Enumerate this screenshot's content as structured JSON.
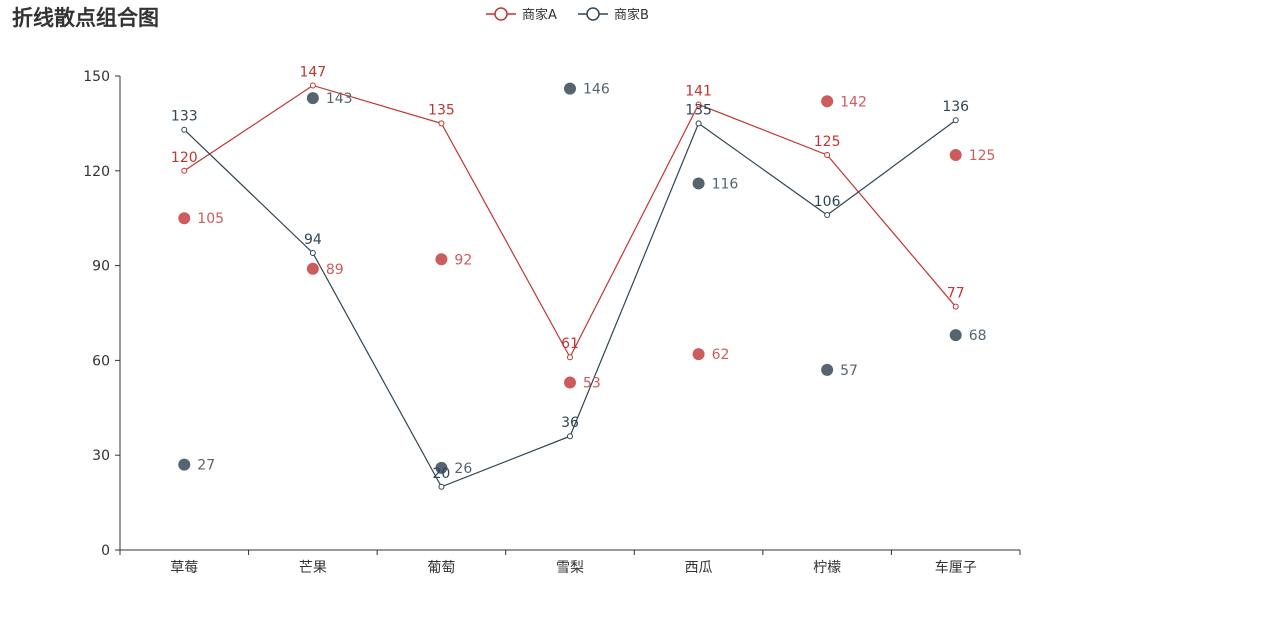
{
  "chart_data": {
    "type": "line",
    "title": "折线散点组合图",
    "categories": [
      "草莓",
      "芒果",
      "葡萄",
      "雪梨",
      "西瓜",
      "柠檬",
      "车厘子"
    ],
    "ylim": [
      0,
      150
    ],
    "yticks": [
      0,
      30,
      60,
      90,
      120,
      150
    ],
    "legend_position": "top-center",
    "line_series": [
      {
        "name": "商家A",
        "color": "#c23531",
        "values": [
          120,
          147,
          135,
          61,
          141,
          125,
          77
        ]
      },
      {
        "name": "商家B",
        "color": "#2f4554",
        "values": [
          133,
          94,
          20,
          36,
          135,
          106,
          136
        ]
      }
    ],
    "scatter_series": [
      {
        "name": "商家A",
        "color": "#cd5c5c",
        "values": [
          105,
          89,
          92,
          53,
          62,
          142,
          125
        ]
      },
      {
        "name": "商家B",
        "color": "#546570",
        "values": [
          27,
          143,
          26,
          146,
          116,
          57,
          68
        ]
      }
    ]
  }
}
